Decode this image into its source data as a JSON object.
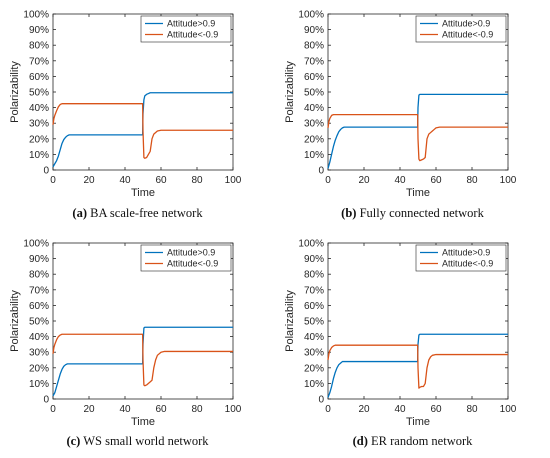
{
  "chart_data": [
    {
      "type": "line",
      "panel_letter": "(a)",
      "caption": "BA scale-free network",
      "xlabel": "Time",
      "ylabel": "Polarizability",
      "xlim": [
        0,
        100
      ],
      "ylim": [
        0,
        100
      ],
      "x_ticks": [
        "0",
        "20",
        "40",
        "60",
        "80",
        "100"
      ],
      "y_ticks": [
        "0",
        "10%",
        "20%",
        "30%",
        "40%",
        "50%",
        "60%",
        "70%",
        "80%",
        "90%",
        "100%"
      ],
      "grid": false,
      "legend_position": "top-right",
      "series": [
        {
          "name": "Attitude>0.9",
          "color": "#0072BD",
          "x": [
            0,
            1,
            2,
            3,
            4,
            5,
            6,
            7,
            8,
            9,
            10,
            30,
            49.8,
            50,
            50.5,
            51,
            52,
            53,
            54,
            55,
            100
          ],
          "y": [
            2,
            4,
            6,
            9,
            13,
            17,
            19.5,
            21,
            22,
            22.5,
            22.5,
            22.5,
            22.5,
            36,
            45,
            47.5,
            48.5,
            49,
            49.5,
            49.5,
            49.5
          ]
        },
        {
          "name": "Attitude<-0.9",
          "color": "#D95319",
          "x": [
            0,
            0.5,
            1,
            2,
            3,
            4,
            5,
            6,
            8,
            10,
            30,
            49.8,
            50,
            50.5,
            51,
            52,
            53,
            54,
            55,
            56,
            58,
            60,
            100
          ],
          "y": [
            29,
            33,
            35,
            38,
            40.5,
            42,
            42.5,
            42.5,
            42.5,
            42.5,
            42.5,
            42.5,
            25,
            8,
            7.5,
            8,
            10,
            12,
            20,
            23,
            25,
            25.5,
            25.5
          ]
        }
      ]
    },
    {
      "type": "line",
      "panel_letter": "(b)",
      "caption": "Fully connected network",
      "xlabel": "Time",
      "ylabel": "Polarizability",
      "xlim": [
        0,
        100
      ],
      "ylim": [
        0,
        100
      ],
      "x_ticks": [
        "0",
        "20",
        "40",
        "60",
        "80",
        "100"
      ],
      "y_ticks": [
        "0",
        "10%",
        "20%",
        "30%",
        "40%",
        "50%",
        "60%",
        "70%",
        "80%",
        "90%",
        "100%"
      ],
      "grid": false,
      "legend_position": "top-right",
      "series": [
        {
          "name": "Attitude>0.9",
          "color": "#0072BD",
          "x": [
            0,
            1,
            2,
            3,
            4,
            5,
            6,
            7,
            8,
            9,
            10,
            30,
            49.8,
            50,
            50.5,
            51,
            52,
            100
          ],
          "y": [
            1,
            5,
            10,
            15,
            19,
            22,
            24.5,
            26,
            27,
            27.5,
            27.5,
            27.5,
            27.5,
            40,
            48,
            48.5,
            48.5,
            48.5
          ]
        },
        {
          "name": "Attitude<-0.9",
          "color": "#D95319",
          "x": [
            0,
            0.5,
            1,
            2,
            3,
            5,
            10,
            30,
            49.8,
            50,
            50.5,
            51,
            52,
            53,
            54,
            55,
            56,
            57,
            58,
            59,
            60,
            62,
            100
          ],
          "y": [
            27,
            31,
            33,
            35,
            35.5,
            35.5,
            35.5,
            35.5,
            35.5,
            20,
            7,
            6,
            6.5,
            7,
            8,
            20,
            23,
            24,
            25,
            26,
            27,
            27.5,
            27.5
          ]
        }
      ]
    },
    {
      "type": "line",
      "panel_letter": "(c)",
      "caption": "WS small world network",
      "xlabel": "Time",
      "ylabel": "Polarizability",
      "xlim": [
        0,
        100
      ],
      "ylim": [
        0,
        100
      ],
      "x_ticks": [
        "0",
        "20",
        "40",
        "60",
        "80",
        "100"
      ],
      "y_ticks": [
        "0",
        "10%",
        "20%",
        "30%",
        "40%",
        "50%",
        "60%",
        "70%",
        "80%",
        "90%",
        "100%"
      ],
      "grid": false,
      "legend_position": "top-right",
      "series": [
        {
          "name": "Attitude>0.9",
          "color": "#0072BD",
          "x": [
            0,
            1,
            2,
            3,
            4,
            5,
            6,
            7,
            8,
            9,
            10,
            30,
            49.8,
            50,
            50.5,
            51,
            52,
            100
          ],
          "y": [
            2,
            4,
            8,
            12,
            16,
            19,
            21,
            22,
            22.5,
            22.5,
            22.5,
            22.5,
            22.5,
            35,
            45.5,
            46,
            46,
            46
          ]
        },
        {
          "name": "Attitude<-0.9",
          "color": "#D95319",
          "x": [
            0,
            0.5,
            1,
            2,
            3,
            4,
            5,
            6,
            10,
            30,
            49.8,
            50,
            50.5,
            51,
            52,
            54,
            55,
            56,
            57,
            58,
            60,
            62,
            100
          ],
          "y": [
            29,
            33,
            35,
            38,
            40,
            41,
            41.5,
            41.5,
            41.5,
            41.5,
            41.5,
            25,
            9,
            8.5,
            9,
            11,
            12,
            20,
            25,
            28,
            30,
            30.5,
            30.5
          ]
        }
      ]
    },
    {
      "type": "line",
      "panel_letter": "(d)",
      "caption": "ER random network",
      "xlabel": "Time",
      "ylabel": "Polarizability",
      "xlim": [
        0,
        100
      ],
      "ylim": [
        0,
        100
      ],
      "x_ticks": [
        "0",
        "20",
        "40",
        "60",
        "80",
        "100"
      ],
      "y_ticks": [
        "0",
        "10%",
        "20%",
        "30%",
        "40%",
        "50%",
        "60%",
        "70%",
        "80%",
        "90%",
        "100%"
      ],
      "grid": false,
      "legend_position": "top-right",
      "series": [
        {
          "name": "Attitude>0.9",
          "color": "#0072BD",
          "x": [
            0,
            1,
            2,
            3,
            4,
            5,
            6,
            7,
            8,
            9,
            10,
            30,
            49.8,
            50,
            50.5,
            51,
            52,
            100
          ],
          "y": [
            1,
            4,
            8,
            13,
            17,
            20,
            22,
            23,
            24,
            24,
            24,
            24,
            24,
            35,
            41,
            41.5,
            41.5,
            41.5
          ]
        },
        {
          "name": "Attitude<-0.9",
          "color": "#D95319",
          "x": [
            0,
            0.5,
            1,
            2,
            3,
            4,
            5,
            10,
            30,
            49.8,
            50,
            50.5,
            51,
            52,
            53,
            54,
            55,
            56,
            57,
            58,
            60,
            62,
            100
          ],
          "y": [
            25,
            29,
            31,
            33,
            34,
            34.5,
            34.5,
            34.5,
            34.5,
            34.5,
            20,
            7,
            7.5,
            8,
            8,
            10,
            20,
            25,
            27,
            28,
            28.5,
            28.5,
            28.5
          ]
        }
      ]
    }
  ]
}
